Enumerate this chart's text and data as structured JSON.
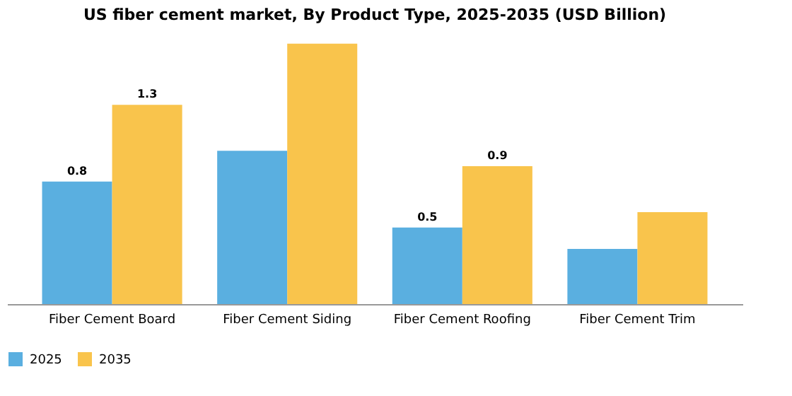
{
  "chart_data": {
    "type": "bar",
    "title": "US fiber cement market, By Product Type, 2025-2035 (USD Billion)",
    "categories": [
      "Fiber Cement Board",
      "Fiber Cement Siding",
      "Fiber Cement Roofing",
      "Fiber Cement Trim"
    ],
    "series": [
      {
        "name": "2025",
        "color": "#5aafe0",
        "values": [
          0.8,
          1.0,
          0.5,
          0.36
        ],
        "value_labels": [
          "0.8",
          null,
          "0.5",
          null
        ]
      },
      {
        "name": "2035",
        "color": "#f9c44c",
        "values": [
          1.3,
          1.7,
          0.9,
          0.6
        ],
        "value_labels": [
          "1.3",
          null,
          "0.9",
          null
        ]
      }
    ],
    "legend": "bottom",
    "grid": false
  }
}
